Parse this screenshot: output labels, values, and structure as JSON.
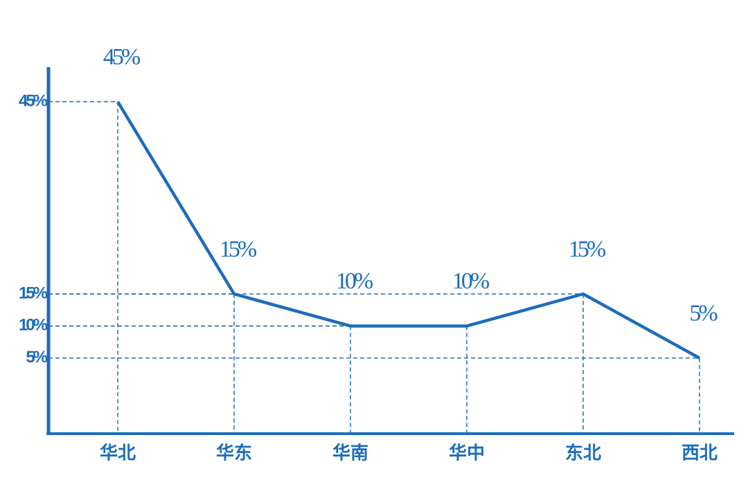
{
  "chart_data": {
    "type": "line",
    "categories": [
      "华北",
      "华东",
      "华南",
      "华中",
      "东北",
      "西北"
    ],
    "values": [
      45,
      15,
      10,
      10,
      15,
      5
    ],
    "value_labels": [
      "45%",
      "15%",
      "10%",
      "10%",
      "15%",
      "5%"
    ],
    "color": "#1c6dbb",
    "ylim": [
      -6.8,
      50.4
    ],
    "yticks": [
      {
        "value": 45,
        "label": "45%"
      },
      {
        "value": 15,
        "label": "15%"
      },
      {
        "value": 10,
        "label": "10%"
      },
      {
        "value": 5,
        "label": "5%"
      }
    ],
    "grid": true
  }
}
